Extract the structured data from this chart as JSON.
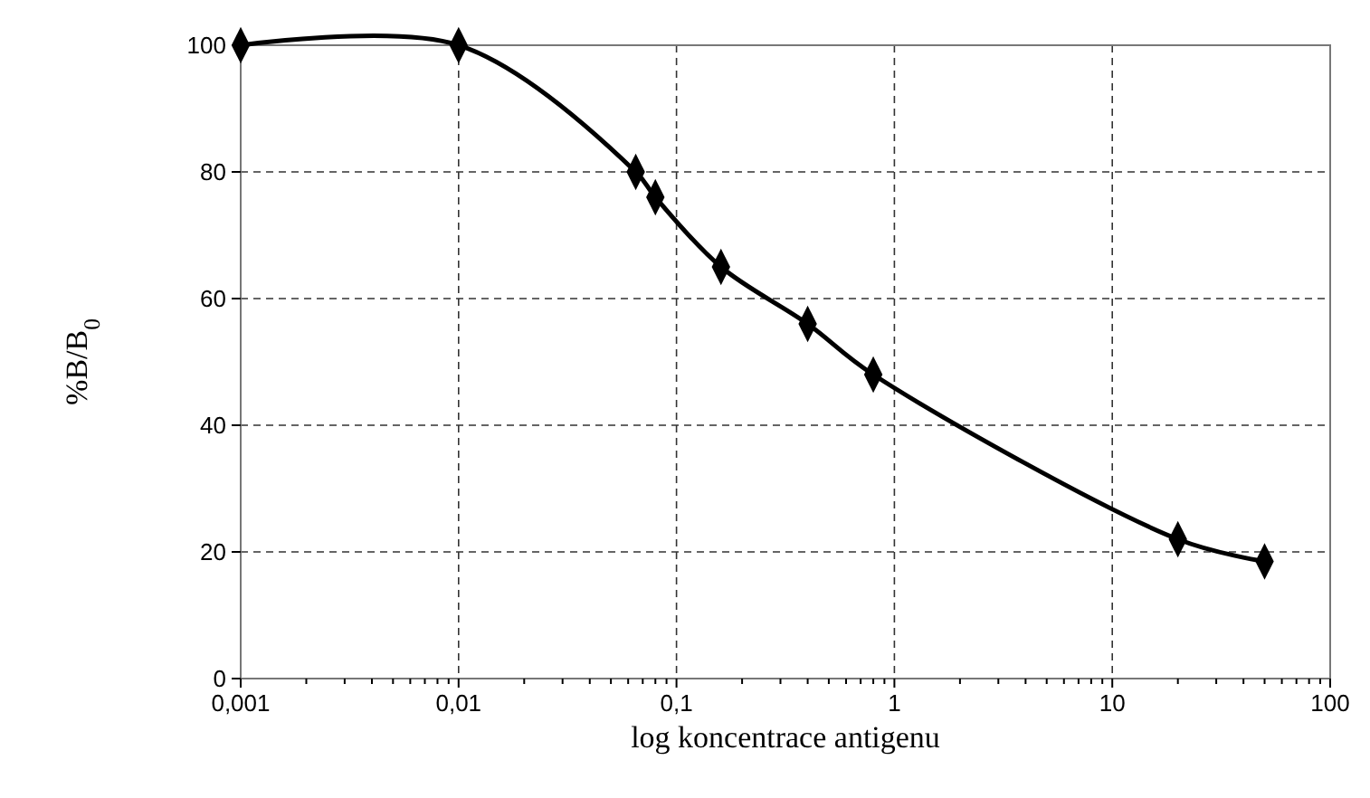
{
  "chart_data": {
    "type": "line",
    "xlabel": "log koncentrace antigenu",
    "ylabel": "%B/B$_{0}$",
    "log": "x",
    "grid": true,
    "marker": "diamond",
    "line_style": "solid",
    "xlim": [
      0.001,
      100
    ],
    "ylim": [
      0,
      100
    ],
    "xticks": [
      {
        "value": 0.001,
        "label": "0,001"
      },
      {
        "value": 0.002,
        "label": null
      },
      {
        "value": 0.003,
        "label": null
      },
      {
        "value": 0.004,
        "label": null
      },
      {
        "value": 0.005,
        "label": null
      },
      {
        "value": 0.006,
        "label": null
      },
      {
        "value": 0.007,
        "label": null
      },
      {
        "value": 0.008,
        "label": null
      },
      {
        "value": 0.009,
        "label": null
      },
      {
        "value": 0.01,
        "label": "0,01"
      },
      {
        "value": 0.02,
        "label": null
      },
      {
        "value": 0.03,
        "label": null
      },
      {
        "value": 0.04,
        "label": null
      },
      {
        "value": 0.05,
        "label": null
      },
      {
        "value": 0.06,
        "label": null
      },
      {
        "value": 0.07,
        "label": null
      },
      {
        "value": 0.08,
        "label": null
      },
      {
        "value": 0.09,
        "label": null
      },
      {
        "value": 0.1,
        "label": "0,1"
      },
      {
        "value": 0.2,
        "label": null
      },
      {
        "value": 0.3,
        "label": null
      },
      {
        "value": 0.4,
        "label": null
      },
      {
        "value": 0.5,
        "label": null
      },
      {
        "value": 0.6,
        "label": null
      },
      {
        "value": 0.7,
        "label": null
      },
      {
        "value": 0.8,
        "label": null
      },
      {
        "value": 0.9,
        "label": null
      },
      {
        "value": 1,
        "label": "1"
      },
      {
        "value": 2,
        "label": null
      },
      {
        "value": 3,
        "label": null
      },
      {
        "value": 4,
        "label": null
      },
      {
        "value": 5,
        "label": null
      },
      {
        "value": 6,
        "label": null
      },
      {
        "value": 7,
        "label": null
      },
      {
        "value": 8,
        "label": null
      },
      {
        "value": 9,
        "label": null
      },
      {
        "value": 10,
        "label": "10"
      },
      {
        "value": 20,
        "label": null
      },
      {
        "value": 30,
        "label": null
      },
      {
        "value": 40,
        "label": null
      },
      {
        "value": 50,
        "label": null
      },
      {
        "value": 60,
        "label": null
      },
      {
        "value": 70,
        "label": null
      },
      {
        "value": 80,
        "label": null
      },
      {
        "value": 90,
        "label": null
      },
      {
        "value": 100,
        "label": "100"
      }
    ],
    "yticks": [
      0,
      20,
      40,
      60,
      80,
      100
    ],
    "x": [
      0.001,
      0.01,
      0.065,
      0.08,
      0.16,
      0.4,
      0.8,
      20,
      50
    ],
    "series": [
      {
        "color": "#000000",
        "values": [
          100,
          100,
          80,
          76,
          65,
          56,
          48,
          22,
          18.5
        ]
      }
    ]
  }
}
